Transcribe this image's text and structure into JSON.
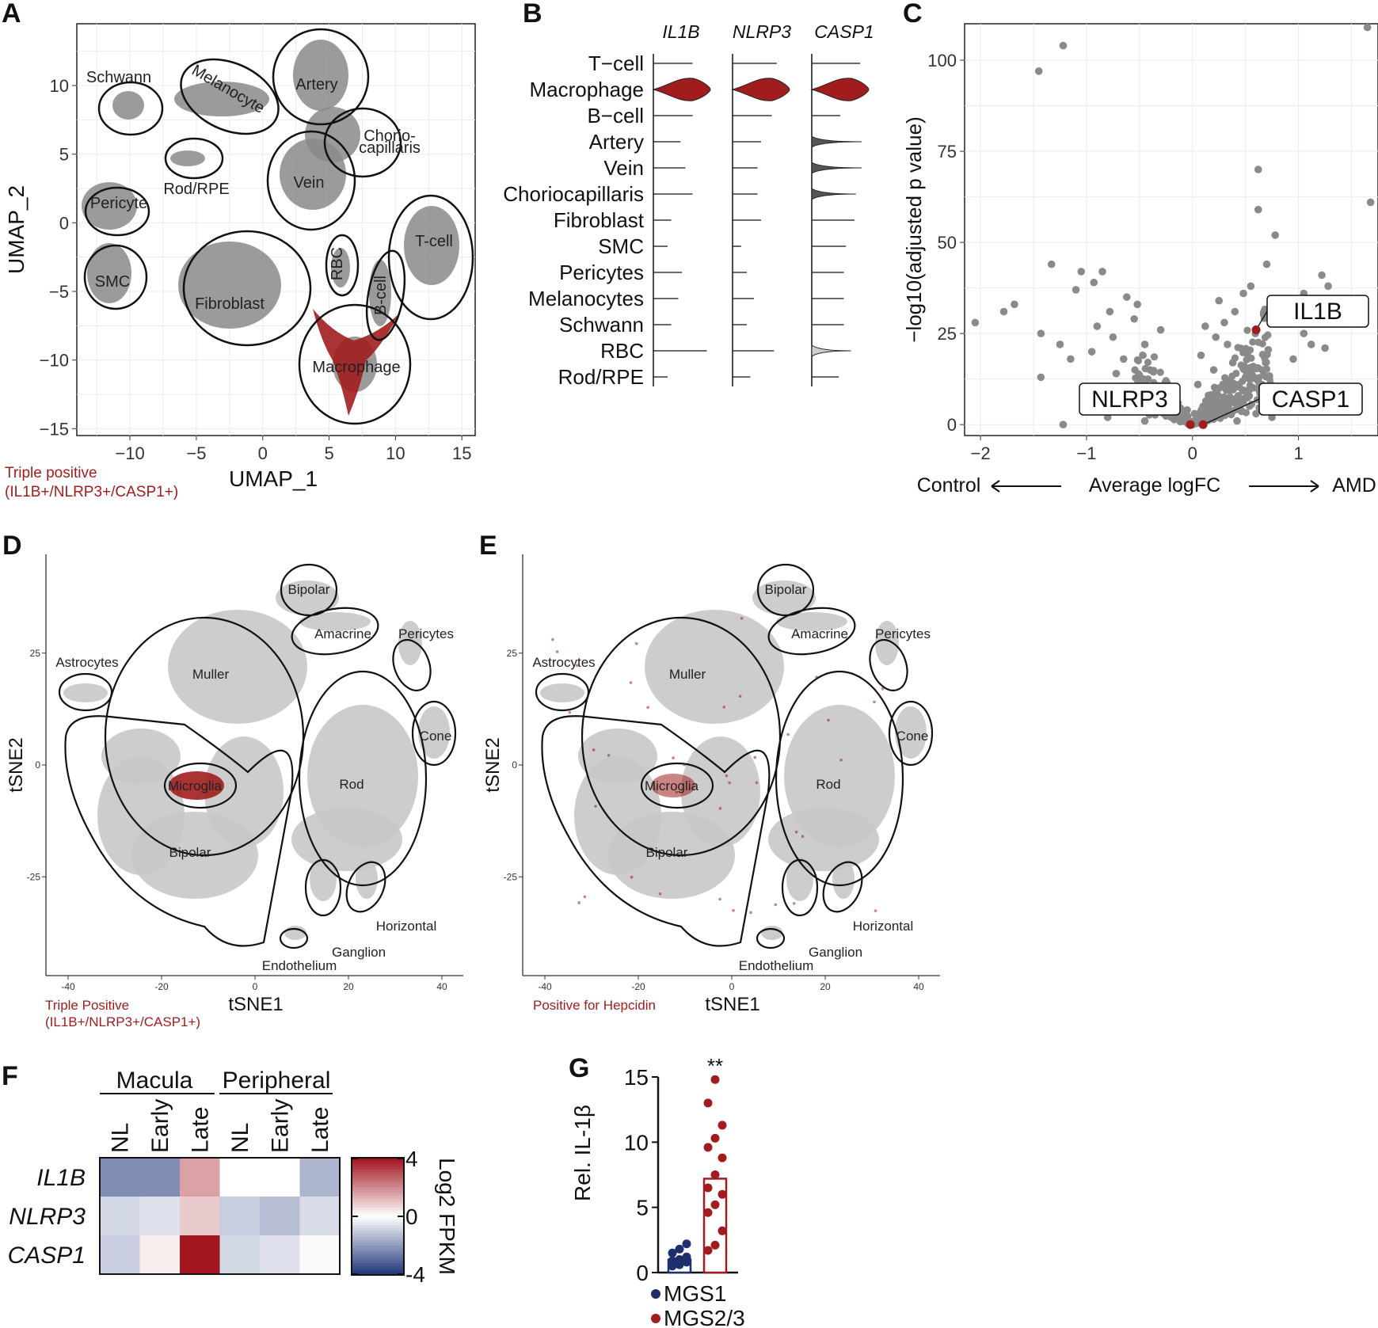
{
  "colors": {
    "cells": "#8a8a8a",
    "retina_cells": "#c8c8c8",
    "positive": "#a11d1d",
    "mgs1": "#1e2f6b",
    "mgs23": "#a11d1d"
  },
  "chart_data": [
    {
      "panel": "A",
      "type": "scatter",
      "xlabel": "UMAP_1",
      "ylabel": "UMAP_2",
      "xticks": [
        "−10",
        "−5",
        "0",
        "5",
        "10",
        "15"
      ],
      "yticks": [
        "10",
        "5",
        "0",
        "−5",
        "−10",
        "−15"
      ],
      "xlim": [
        -14,
        16
      ],
      "ylim": [
        -15.5,
        14.5
      ],
      "clusters": [
        "Schwann",
        "Melanocyte",
        "Artery",
        "Chorio-",
        "capillaris",
        "Rod/RPE",
        "Vein",
        "Pericyte",
        "SMC",
        "Fibroblast",
        "RBC",
        "B-cell",
        "T-cell",
        "Macrophage"
      ],
      "legend": [
        "Triple positive",
        "(IL1B+/NLRP3+/CASP1+)"
      ]
    },
    {
      "panel": "B",
      "type": "violin",
      "genes": [
        "IL1B",
        "NLRP3",
        "CASP1"
      ],
      "categories": [
        "T−cell",
        "Macrophage",
        "B−cell",
        "Artery",
        "Vein",
        "Choriocapillaris",
        "Fibroblast",
        "SMC",
        "Pericytes",
        "Melanocytes",
        "Schwann",
        "RBC",
        "Rod/RPE"
      ],
      "max_expression": {
        "IL1B": [
          0.55,
          0.8,
          0.55,
          0.38,
          0.45,
          0.55,
          0.25,
          0.2,
          0.4,
          0.35,
          0.25,
          0.75,
          0.2
        ],
        "NLRP3": [
          0.62,
          0.8,
          0.55,
          0.4,
          0.35,
          0.35,
          0.4,
          0.12,
          0.2,
          0.3,
          0.2,
          0.58,
          0.25
        ],
        "CASP1": [
          0.68,
          0.8,
          0.4,
          0.7,
          0.7,
          0.62,
          0.6,
          0.48,
          0.45,
          0.45,
          0.45,
          0.55,
          0.38
        ]
      }
    },
    {
      "panel": "C",
      "type": "scatter",
      "xlabel": "Average logFC",
      "ylabel": "−log10(adjusted p value)",
      "xticks": [
        "−2",
        "−1",
        "0",
        "1"
      ],
      "yticks": [
        "100",
        "75",
        "50",
        "25",
        "0"
      ],
      "xlim": [
        -2.15,
        1.75
      ],
      "ylim": [
        -3,
        110
      ],
      "direction_left": "Control",
      "direction_right": "AMD",
      "labeled_points": [
        {
          "label": "IL1B",
          "x": 0.6,
          "y": 26
        },
        {
          "label": "NLRP3",
          "x": -0.02,
          "y": 0
        },
        {
          "label": "CASP1",
          "x": 0.1,
          "y": 0
        }
      ],
      "points": [
        {
          "x": -1.22,
          "y": 104
        },
        {
          "x": -1.45,
          "y": 97
        },
        {
          "x": 1.65,
          "y": 109
        },
        {
          "x": 0.62,
          "y": 70
        },
        {
          "x": 0.62,
          "y": 59
        },
        {
          "x": 0.78,
          "y": 52
        },
        {
          "x": 1.68,
          "y": 61
        },
        {
          "x": -2.05,
          "y": 28
        },
        {
          "x": -1.78,
          "y": 31
        },
        {
          "x": -1.68,
          "y": 33
        },
        {
          "x": -1.33,
          "y": 44
        },
        {
          "x": -1.43,
          "y": 25
        },
        {
          "x": -1.43,
          "y": 13
        },
        {
          "x": -1.22,
          "y": 0
        },
        {
          "x": -1.1,
          "y": 37
        },
        {
          "x": -1.05,
          "y": 42
        },
        {
          "x": -0.85,
          "y": 42
        },
        {
          "x": -0.93,
          "y": 39
        },
        {
          "x": -0.62,
          "y": 35
        },
        {
          "x": -1.25,
          "y": 22
        },
        {
          "x": -1.15,
          "y": 18
        },
        {
          "x": 0.7,
          "y": 44
        },
        {
          "x": 0.55,
          "y": 38
        },
        {
          "x": 1.05,
          "y": 36
        },
        {
          "x": 1.22,
          "y": 41
        },
        {
          "x": 1.28,
          "y": 38
        },
        {
          "x": 0.95,
          "y": 33
        },
        {
          "x": 0.88,
          "y": 29
        },
        {
          "x": 1.05,
          "y": 25
        },
        {
          "x": 1.25,
          "y": 21
        },
        {
          "x": 0.95,
          "y": 18
        },
        {
          "x": 1.12,
          "y": 22
        },
        {
          "x": 0.4,
          "y": 31
        },
        {
          "x": 0.25,
          "y": 34
        },
        {
          "x": 0.48,
          "y": 36
        },
        {
          "x": 0.12,
          "y": 27
        },
        {
          "x": 0.33,
          "y": 22
        },
        {
          "x": 0.08,
          "y": 19
        },
        {
          "x": 0.2,
          "y": 15
        },
        {
          "x": 0.5,
          "y": 13
        },
        {
          "x": 0.05,
          "y": 11
        },
        {
          "x": 0.15,
          "y": 8
        },
        {
          "x": 0.3,
          "y": 6
        },
        {
          "x": 0.45,
          "y": 4
        },
        {
          "x": 0.6,
          "y": 3
        },
        {
          "x": 0.75,
          "y": 2
        },
        {
          "x": 0.02,
          "y": 3
        },
        {
          "x": 0.1,
          "y": 5
        },
        {
          "x": 0.25,
          "y": 10
        },
        {
          "x": 0.38,
          "y": 17
        },
        {
          "x": 0.22,
          "y": 24
        },
        {
          "x": 0.3,
          "y": 28
        },
        {
          "x": -0.3,
          "y": 26
        },
        {
          "x": -0.45,
          "y": 22
        },
        {
          "x": -0.55,
          "y": 29
        },
        {
          "x": -0.75,
          "y": 24
        },
        {
          "x": -0.9,
          "y": 27
        },
        {
          "x": -0.65,
          "y": 18
        },
        {
          "x": -0.4,
          "y": 15
        },
        {
          "x": -0.25,
          "y": 12
        },
        {
          "x": -0.5,
          "y": 10
        },
        {
          "x": -0.15,
          "y": 8
        },
        {
          "x": -0.35,
          "y": 6
        },
        {
          "x": -0.6,
          "y": 4
        },
        {
          "x": -0.8,
          "y": 2
        },
        {
          "x": -0.05,
          "y": 4
        },
        {
          "x": -0.2,
          "y": 2
        },
        {
          "x": -0.72,
          "y": 14
        },
        {
          "x": -0.85,
          "y": 9
        },
        {
          "x": -0.95,
          "y": 20
        },
        {
          "x": -0.52,
          "y": 33
        },
        {
          "x": -0.78,
          "y": 31
        },
        {
          "x": 0.18,
          "y": 2
        },
        {
          "x": 0.42,
          "y": 1
        },
        {
          "x": -0.45,
          "y": 1
        },
        {
          "x": -0.1,
          "y": 1
        }
      ]
    },
    {
      "panel": "D",
      "type": "scatter",
      "xlabel": "tSNE1",
      "ylabel": "tSNE2",
      "xticks": [
        "-40",
        "-20",
        "0",
        "20",
        "40"
      ],
      "yticks": [
        "25",
        "0",
        "-25"
      ],
      "clusters": [
        "Bipolar",
        "Amacrine",
        "Pericytes",
        "Astrocytes",
        "Muller",
        "Cone",
        "Microglia",
        "Rod",
        "Bipolar",
        "Horizontal",
        "Ganglion",
        "Endothelium"
      ],
      "legend": [
        "Triple Positive",
        "(IL1B+/NLRP3+/CASP1+)"
      ]
    },
    {
      "panel": "E",
      "type": "scatter",
      "xlabel": "tSNE1",
      "ylabel": "tSNE2",
      "xticks": [
        "-40",
        "-20",
        "0",
        "20",
        "40"
      ],
      "yticks": [
        "25",
        "0",
        "-25"
      ],
      "clusters": [
        "Bipolar",
        "Amacrine",
        "Pericytes",
        "Astrocytes",
        "Muller",
        "Cone",
        "Microglia",
        "Rod",
        "Bipolar",
        "Horizontal",
        "Ganglion",
        "Endothelium"
      ],
      "legend": [
        "Positive for Hepcidin"
      ]
    },
    {
      "panel": "F",
      "type": "heatmap",
      "groups": [
        "Macula",
        "Peripheral"
      ],
      "columns": [
        "NL",
        "Early",
        "Late",
        "NL",
        "Early",
        "Late"
      ],
      "rows": [
        "IL1B",
        "NLRP3",
        "CASP1"
      ],
      "values": [
        [
          -2.3,
          -2.3,
          1.6,
          0.0,
          0.0,
          -1.5
        ],
        [
          -0.8,
          -0.6,
          0.9,
          -1.0,
          -1.3,
          -0.7
        ],
        [
          -1.0,
          0.3,
          4.0,
          -0.8,
          -0.6,
          -0.1
        ]
      ],
      "colorbar_label": "Log2 FPKM",
      "colorbar_ticks": [
        "4",
        "0",
        "-4"
      ],
      "range": [
        -4,
        4
      ]
    },
    {
      "panel": "G",
      "type": "bar",
      "ylabel": "Rel. IL-1β",
      "yticks": [
        "15",
        "10",
        "5",
        "0"
      ],
      "ylim": [
        0,
        15
      ],
      "series": [
        {
          "name": "MGS1",
          "value": 1.0,
          "points": [
            0.5,
            0.6,
            0.8,
            0.9,
            1.0,
            1.2,
            1.5,
            1.8,
            2.2
          ]
        },
        {
          "name": "MGS2/3",
          "value": 7.2,
          "points": [
            1.7,
            2.1,
            3.2,
            4.6,
            5.2,
            6.0,
            6.5,
            7.5,
            8.8,
            9.6,
            10.3,
            11.3,
            13.0,
            14.8
          ]
        }
      ],
      "significance": "**"
    }
  ]
}
